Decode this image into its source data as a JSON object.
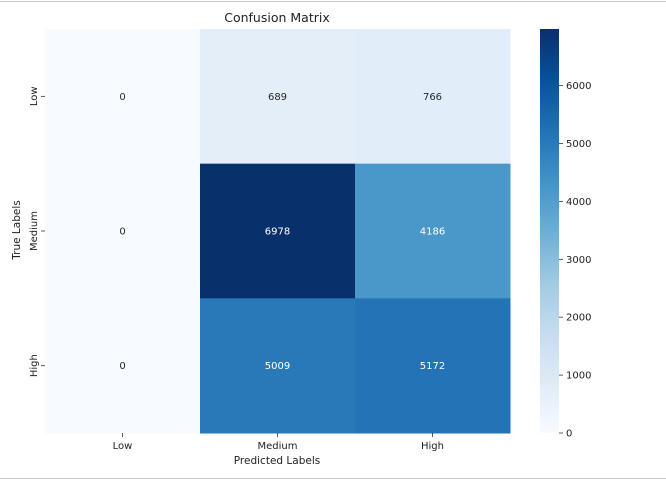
{
  "chart_data": {
    "type": "heatmap",
    "title": "Confusion Matrix",
    "xlabel": "Predicted Labels",
    "ylabel": "True Labels",
    "x_categories": [
      "Low",
      "Medium",
      "High"
    ],
    "y_categories": [
      "Low",
      "Medium",
      "High"
    ],
    "values": [
      [
        0,
        689,
        766
      ],
      [
        0,
        6978,
        4186
      ],
      [
        0,
        5009,
        5172
      ]
    ],
    "colormap": "Blues",
    "vmin": 0,
    "vmax": 6978,
    "colorbar_ticks": [
      0,
      1000,
      2000,
      3000,
      4000,
      5000,
      6000
    ],
    "colorbar_tick_labels": [
      "0",
      "1000",
      "2000",
      "3000",
      "4000",
      "5000",
      "6000"
    ]
  }
}
